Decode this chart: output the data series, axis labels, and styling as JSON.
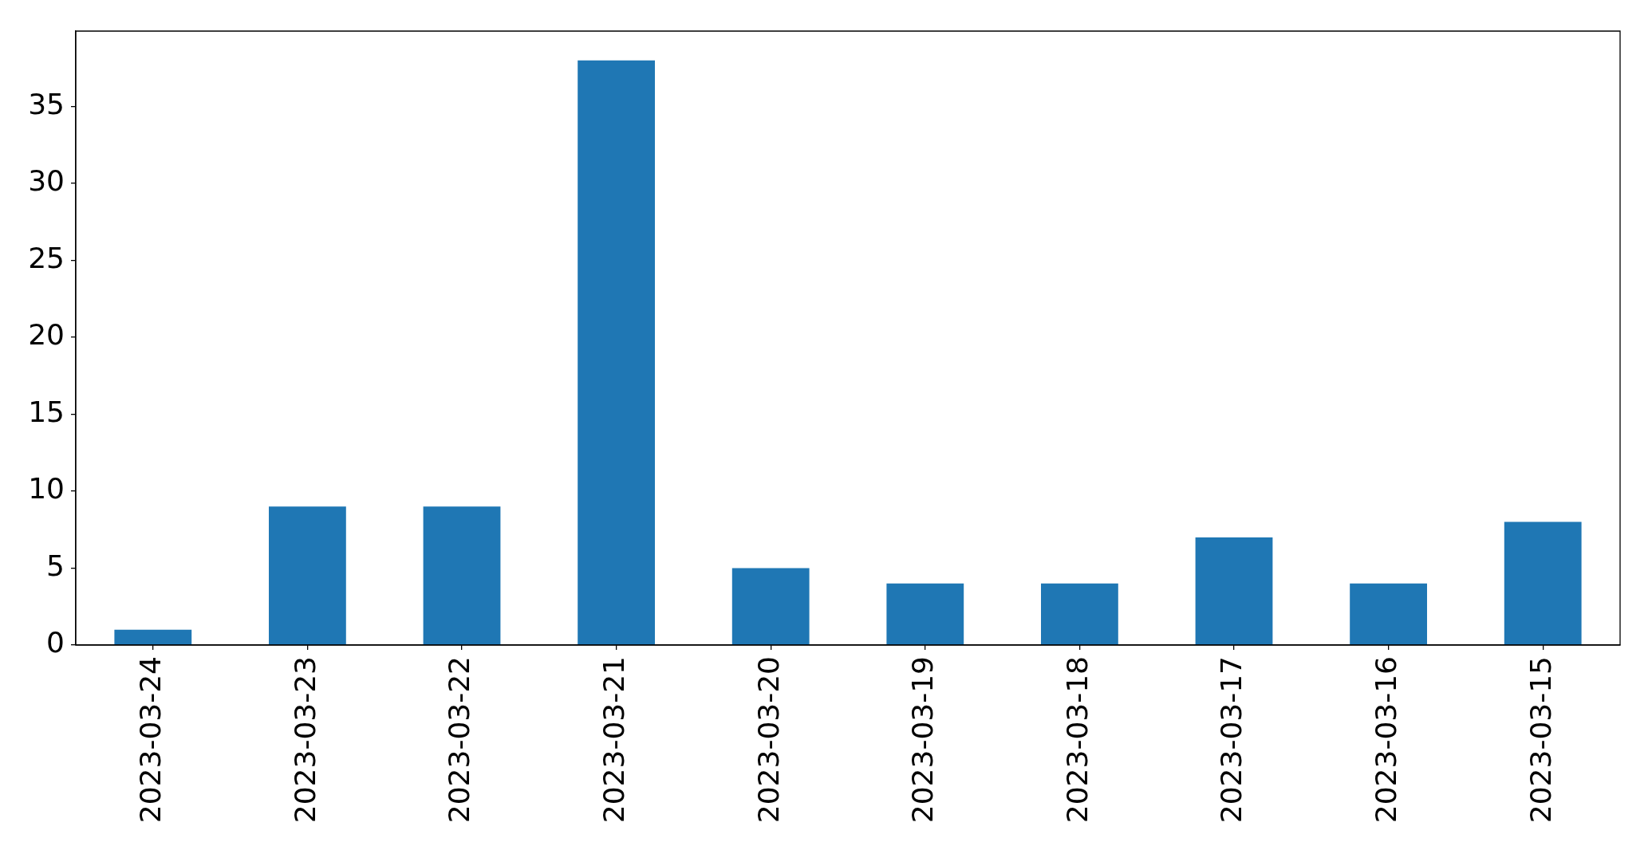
{
  "chart_data": {
    "type": "bar",
    "categories": [
      "2023-03-24",
      "2023-03-23",
      "2023-03-22",
      "2023-03-21",
      "2023-03-20",
      "2023-03-19",
      "2023-03-18",
      "2023-03-17",
      "2023-03-16",
      "2023-03-15"
    ],
    "values": [
      1,
      9,
      9,
      38,
      5,
      4,
      4,
      7,
      4,
      8
    ],
    "color": "#1f77b4",
    "ylim": [
      0,
      39.9
    ],
    "yticks": [
      0,
      5,
      10,
      15,
      20,
      25,
      30,
      35
    ],
    "grid": false,
    "legend": false
  }
}
